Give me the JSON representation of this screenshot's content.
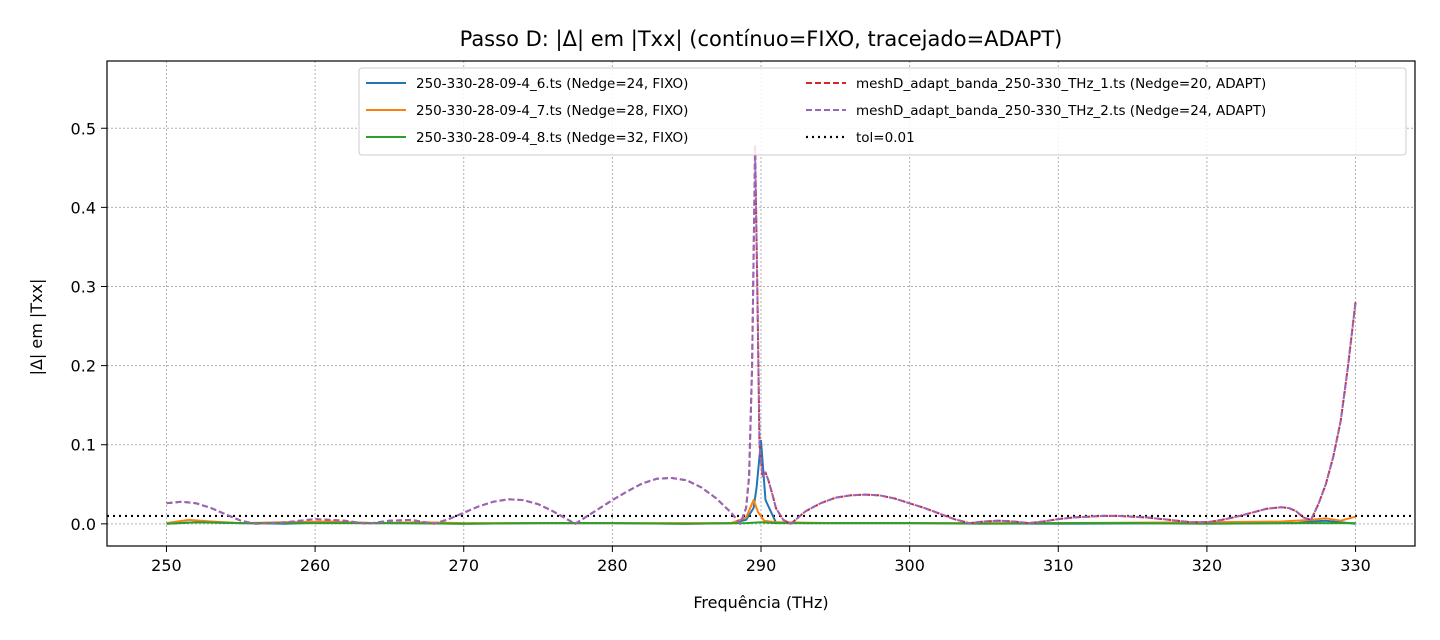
{
  "chart_data": {
    "type": "line",
    "title": "Passo D: |Δ| em |Txx| (contínuo=FIXO, tracejado=ADAPT)",
    "xlabel": "Frequência (THz)",
    "ylabel": "|Δ| em |Txx|",
    "xlim": [
      246,
      334
    ],
    "ylim": [
      -0.028,
      0.585
    ],
    "xticks": [
      250,
      260,
      270,
      280,
      290,
      300,
      310,
      320,
      330
    ],
    "yticks": [
      0.0,
      0.1,
      0.2,
      0.3,
      0.4,
      0.5
    ],
    "xtick_labels": [
      "250",
      "260",
      "270",
      "280",
      "290",
      "300",
      "310",
      "320",
      "330"
    ],
    "ytick_labels": [
      "0.0",
      "0.1",
      "0.2",
      "0.3",
      "0.4",
      "0.5"
    ],
    "grid": true,
    "legend_position": "upper-right",
    "series": [
      {
        "name": "250-330-28-09-4_6.ts (Nedge=24, FIXO)",
        "color": "#1f77b4",
        "style": "solid",
        "x": [
          250,
          252,
          255,
          258,
          261,
          264,
          267,
          270,
          275,
          280,
          285,
          288,
          289,
          289.5,
          289.7,
          290,
          290.3,
          291,
          293,
          300,
          310,
          320,
          326,
          327,
          328,
          329,
          330
        ],
        "y": [
          0.0,
          0.002,
          0.001,
          0.0,
          0.002,
          0.001,
          0.001,
          0.0,
          0.001,
          0.001,
          0.0,
          0.001,
          0.005,
          0.02,
          0.045,
          0.105,
          0.03,
          0.002,
          0.001,
          0.001,
          0.0,
          0.001,
          0.001,
          0.003,
          0.004,
          0.002,
          0.0
        ]
      },
      {
        "name": "250-330-28-09-4_7.ts (Nedge=28, FIXO)",
        "color": "#ff7f0e",
        "style": "solid",
        "x": [
          250,
          251.5,
          253,
          255,
          258,
          261,
          264,
          267,
          270,
          275,
          280,
          285,
          288,
          289,
          289.5,
          289.8,
          290.2,
          291,
          295,
          300,
          310,
          320,
          325,
          327,
          328,
          329,
          330
        ],
        "y": [
          0.001,
          0.005,
          0.003,
          0.001,
          0.002,
          0.003,
          0.001,
          0.002,
          0.001,
          0.001,
          0.001,
          0.001,
          0.001,
          0.008,
          0.03,
          0.015,
          0.004,
          0.002,
          0.001,
          0.001,
          0.001,
          0.002,
          0.003,
          0.005,
          0.007,
          0.004,
          0.009
        ]
      },
      {
        "name": "250-330-28-09-4_8.ts (Nedge=32, FIXO)",
        "color": "#2ca02c",
        "style": "solid",
        "x": [
          250,
          252,
          255,
          260,
          265,
          270,
          275,
          280,
          285,
          289,
          290,
          291,
          295,
          300,
          305,
          310,
          315,
          320,
          325,
          330
        ],
        "y": [
          0.0,
          0.002,
          0.001,
          0.001,
          0.001,
          0.0,
          0.001,
          0.001,
          0.0,
          0.001,
          0.002,
          0.001,
          0.001,
          0.001,
          0.0,
          0.001,
          0.001,
          0.0,
          0.001,
          0.001
        ]
      },
      {
        "name": "meshD_adapt_banda_250-330_THz_1.ts (Nedge=20, ADAPT)",
        "color": "#d62728",
        "style": "dashed",
        "x": [
          250,
          251,
          252,
          253,
          254,
          255,
          256,
          258,
          260,
          262,
          263.5,
          265,
          266.5,
          268,
          269,
          270,
          271,
          272,
          273,
          274,
          275,
          276,
          277.5,
          278,
          279,
          280,
          281,
          282,
          283,
          284,
          285,
          286,
          287,
          288,
          288.6,
          289,
          289.2,
          289.4,
          289.6,
          289.75,
          289.9,
          290.1,
          290.3,
          290.5,
          290.8,
          291,
          291.5,
          292,
          292.5,
          293,
          294,
          295,
          296,
          297,
          298,
          299,
          300,
          301,
          302,
          303,
          304,
          305,
          306,
          307,
          308,
          309,
          310,
          311,
          312,
          313,
          314,
          315,
          316,
          317,
          318,
          319,
          320,
          321,
          322,
          323,
          324,
          325,
          325.5,
          326,
          326.5,
          327,
          327.5,
          328,
          328.5,
          329,
          329.5,
          330
        ],
        "y": [
          0.026,
          0.028,
          0.026,
          0.02,
          0.012,
          0.004,
          0.0,
          0.002,
          0.006,
          0.004,
          0.0,
          0.004,
          0.005,
          0.0,
          0.006,
          0.014,
          0.022,
          0.028,
          0.031,
          0.03,
          0.025,
          0.016,
          0.0,
          0.006,
          0.018,
          0.03,
          0.041,
          0.051,
          0.057,
          0.058,
          0.055,
          0.046,
          0.032,
          0.014,
          0.0,
          0.02,
          0.06,
          0.2,
          0.48,
          0.3,
          0.1,
          0.06,
          0.065,
          0.055,
          0.035,
          0.02,
          0.005,
          0.0,
          0.008,
          0.016,
          0.026,
          0.033,
          0.036,
          0.037,
          0.036,
          0.032,
          0.026,
          0.02,
          0.013,
          0.006,
          0.001,
          0.003,
          0.004,
          0.003,
          0.001,
          0.003,
          0.006,
          0.008,
          0.009,
          0.01,
          0.01,
          0.009,
          0.008,
          0.006,
          0.004,
          0.002,
          0.002,
          0.005,
          0.009,
          0.014,
          0.019,
          0.021,
          0.02,
          0.016,
          0.008,
          0.005,
          0.025,
          0.05,
          0.085,
          0.13,
          0.2,
          0.28
        ]
      },
      {
        "name": "meshD_adapt_banda_250-330_THz_2.ts (Nedge=24, ADAPT)",
        "color": "#9467bd",
        "style": "dashed",
        "x": [
          250,
          251,
          252,
          253,
          254,
          255,
          256,
          258,
          260,
          262,
          263.5,
          265,
          266.5,
          268,
          269,
          270,
          271,
          272,
          273,
          274,
          275,
          276,
          277.5,
          278,
          279,
          280,
          281,
          282,
          283,
          284,
          285,
          286,
          287,
          288,
          288.6,
          289,
          289.2,
          289.4,
          289.6,
          289.75,
          289.9,
          290.1,
          290.3,
          290.5,
          290.8,
          291,
          291.5,
          292,
          292.5,
          293,
          294,
          295,
          296,
          297,
          298,
          299,
          300,
          301,
          302,
          303,
          304,
          305,
          306,
          307,
          308,
          309,
          310,
          311,
          312,
          313,
          314,
          315,
          316,
          317,
          318,
          319,
          320,
          321,
          322,
          323,
          324,
          325,
          325.5,
          326,
          326.5,
          327,
          327.5,
          328,
          328.5,
          329,
          329.5,
          330
        ],
        "y": [
          0.026,
          0.028,
          0.026,
          0.02,
          0.012,
          0.004,
          0.0,
          0.002,
          0.006,
          0.004,
          0.0,
          0.004,
          0.005,
          0.0,
          0.006,
          0.014,
          0.022,
          0.028,
          0.031,
          0.03,
          0.025,
          0.016,
          0.0,
          0.006,
          0.018,
          0.03,
          0.041,
          0.051,
          0.057,
          0.058,
          0.055,
          0.046,
          0.032,
          0.014,
          0.0,
          0.02,
          0.06,
          0.2,
          0.47,
          0.3,
          0.1,
          0.06,
          0.065,
          0.055,
          0.035,
          0.02,
          0.005,
          0.0,
          0.008,
          0.016,
          0.026,
          0.033,
          0.036,
          0.037,
          0.036,
          0.032,
          0.026,
          0.02,
          0.013,
          0.006,
          0.001,
          0.003,
          0.004,
          0.003,
          0.001,
          0.003,
          0.006,
          0.008,
          0.009,
          0.01,
          0.01,
          0.009,
          0.008,
          0.006,
          0.004,
          0.002,
          0.002,
          0.005,
          0.009,
          0.014,
          0.019,
          0.021,
          0.02,
          0.016,
          0.008,
          0.005,
          0.025,
          0.05,
          0.085,
          0.13,
          0.2,
          0.28
        ]
      }
    ],
    "reference_line": {
      "name": "tol=0.01",
      "y": 0.01,
      "color": "#000000",
      "style": "dotted"
    }
  }
}
